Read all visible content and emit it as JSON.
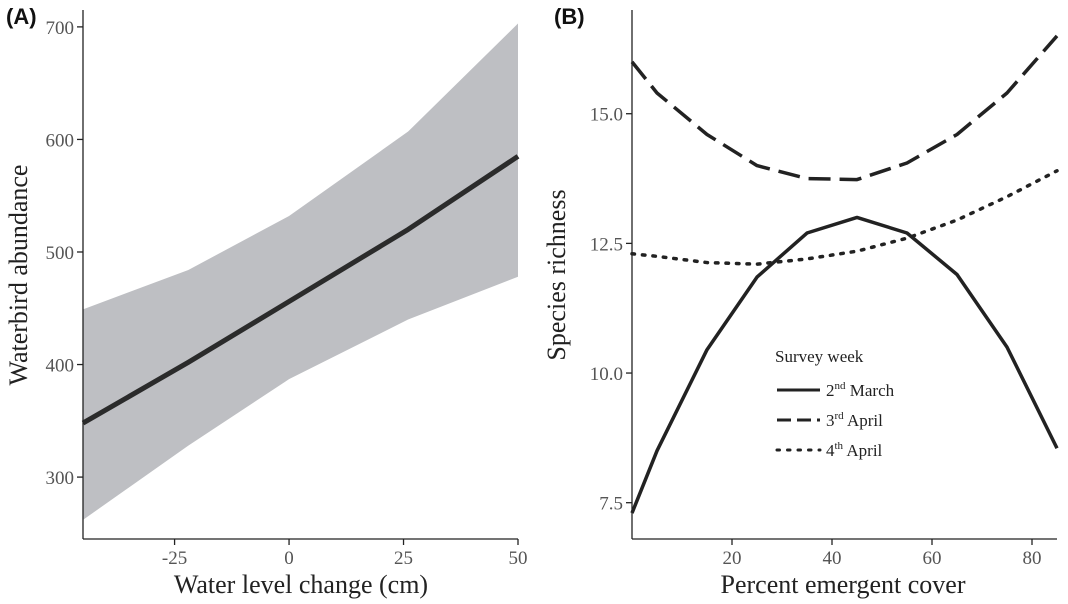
{
  "chart_data": [
    {
      "panel": "(A)",
      "type": "line",
      "xlabel": "Water level change (cm)",
      "ylabel": "Waterbird abundance",
      "xlim": [
        -45,
        50
      ],
      "ylim": [
        245,
        715
      ],
      "xticks": [
        -25,
        0,
        25,
        50
      ],
      "xtick_labels": [
        "-25",
        "0",
        "25",
        "50"
      ],
      "yticks": [
        300,
        400,
        500,
        600,
        700
      ],
      "ytick_labels": [
        "300",
        "400",
        "500",
        "600",
        "700"
      ],
      "grid": false,
      "series": [
        {
          "x": [
            -45,
            -22,
            0,
            26,
            50
          ],
          "y": [
            348,
            402,
            456,
            520,
            585
          ],
          "ci_lower": [
            262,
            328,
            387,
            440,
            478
          ],
          "ci_upper": [
            449,
            484,
            532,
            607,
            703
          ]
        }
      ],
      "colors": {
        "line": "#2b2b2b",
        "ribbon": "#bebfc3"
      }
    },
    {
      "panel": "(B)",
      "type": "line",
      "xlabel": "Percent emergent cover",
      "ylabel": "Species richness",
      "xlim": [
        0,
        85
      ],
      "ylim": [
        6.8,
        17.0
      ],
      "xticks": [
        20,
        40,
        60,
        80
      ],
      "xtick_labels": [
        "20",
        "40",
        "60",
        "80"
      ],
      "yticks": [
        7.5,
        10.0,
        12.5,
        15.0
      ],
      "ytick_labels": [
        "7.5",
        "10.0",
        "12.5",
        "15.0"
      ],
      "grid": false,
      "legend_title": "Survey week",
      "legend_position": "center",
      "series": [
        {
          "label_main": "2",
          "label_sup": "nd",
          "label_rest": " March",
          "dash": "solid",
          "x": [
            0,
            5,
            15,
            25,
            35,
            45,
            55,
            65,
            75,
            85
          ],
          "y": [
            7.3,
            8.5,
            10.45,
            11.85,
            12.7,
            13.0,
            12.7,
            11.9,
            10.5,
            8.55
          ]
        },
        {
          "label_main": "3",
          "label_sup": "rd",
          "label_rest": " April",
          "dash": "longdash",
          "x": [
            0,
            5,
            15,
            25,
            35,
            45,
            55,
            65,
            75,
            85
          ],
          "y": [
            16.0,
            15.4,
            14.6,
            14.0,
            13.75,
            13.73,
            14.05,
            14.6,
            15.4,
            16.5
          ]
        },
        {
          "label_main": "4",
          "label_sup": "th",
          "label_rest": " April",
          "dash": "dotted",
          "x": [
            0,
            5,
            15,
            25,
            35,
            45,
            55,
            65,
            75,
            85
          ],
          "y": [
            12.3,
            12.25,
            12.13,
            12.1,
            12.2,
            12.35,
            12.6,
            12.95,
            13.4,
            13.9
          ]
        }
      ],
      "colors": {
        "line": "#222222"
      }
    }
  ]
}
